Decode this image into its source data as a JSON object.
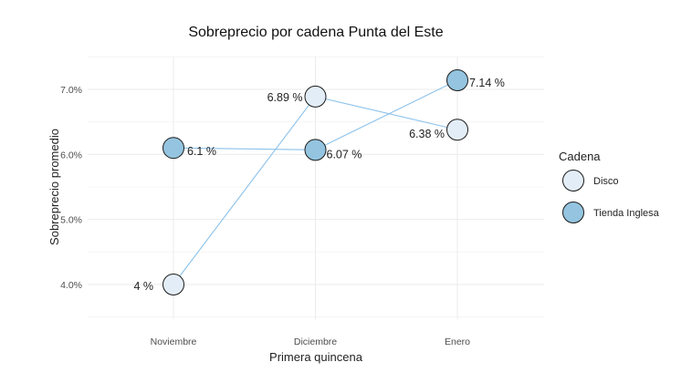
{
  "chart_data": {
    "type": "line",
    "title": "Sobreprecio por cadena Punta del Este",
    "xlabel": "Primera quincena",
    "ylabel": "Sobreprecio promedio",
    "categories": [
      "Noviembre",
      "Diciembre",
      "Enero"
    ],
    "ylim": [
      3.5,
      7.6
    ],
    "yticks": [
      4.0,
      5.0,
      6.0,
      7.0
    ],
    "ytick_labels": [
      "4.0%",
      "5.0%",
      "6.0%",
      "7.0%"
    ],
    "grid": true,
    "series": [
      {
        "name": "Disco",
        "values": [
          4.0,
          6.89,
          6.38
        ],
        "labels": [
          "4 %",
          "6.89 %",
          "6.38 %"
        ],
        "color": "#e3edf7"
      },
      {
        "name": "Tienda Inglesa",
        "values": [
          6.1,
          6.07,
          7.14
        ],
        "labels": [
          "6.1 %",
          "6.07 %",
          "7.14 %"
        ],
        "color": "#94c4df"
      }
    ],
    "line_color": "#8cc2ea",
    "legend": {
      "title": "Cadena",
      "position": "right"
    }
  }
}
